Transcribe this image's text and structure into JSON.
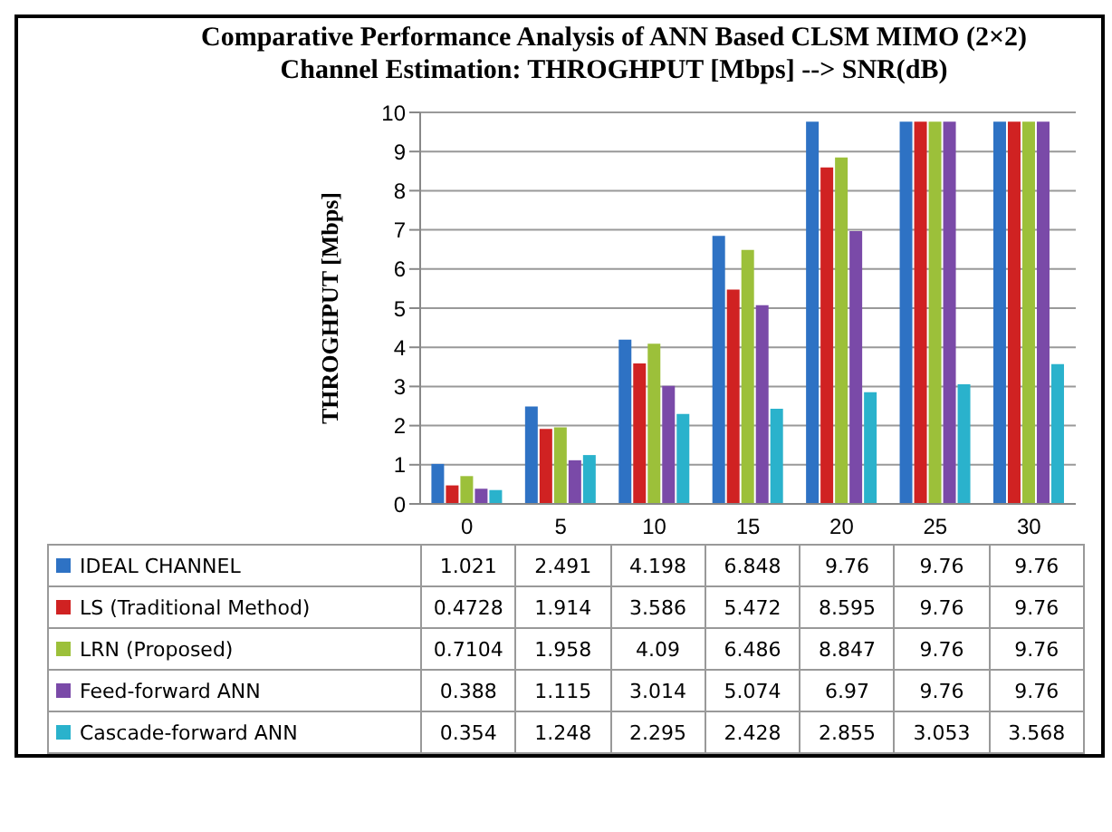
{
  "chart_data": {
    "type": "bar",
    "title": "Comparative Performance Analysis of ANN Based CLSM MIMO (2×2)",
    "subtitle": "Channel Estimation:  THROGHPUT [Mbps] --> SNR(dB)",
    "ylabel": "THROGHPUT  [Mbps]",
    "categories": [
      "0",
      "5",
      "10",
      "15",
      "20",
      "25",
      "30"
    ],
    "ylim": [
      0,
      10
    ],
    "yticks": [
      0,
      1,
      2,
      3,
      4,
      5,
      6,
      7,
      8,
      9,
      10
    ],
    "grid": "y",
    "legend": "bottom",
    "data_labels": true,
    "series": [
      {
        "name": "IDEAL CHANNEL",
        "color": "#2e72c4",
        "values": [
          1.021,
          2.491,
          4.198,
          6.848,
          9.76,
          9.76,
          9.76
        ]
      },
      {
        "name": "LS (Traditional Method)",
        "color": "#d02222",
        "values": [
          0.4728,
          1.914,
          3.586,
          5.472,
          8.595,
          9.76,
          9.76
        ]
      },
      {
        "name": "LRN (Proposed)",
        "color": "#9cc03a",
        "values": [
          0.7104,
          1.958,
          4.09,
          6.486,
          8.847,
          9.76,
          9.76
        ]
      },
      {
        "name": "Feed-forward ANN",
        "color": "#7a4aa8",
        "values": [
          0.388,
          1.115,
          3.014,
          5.074,
          6.97,
          9.76,
          9.76
        ]
      },
      {
        "name": "Cascade-forward ANN",
        "color": "#2ab2cc",
        "values": [
          0.354,
          1.248,
          2.295,
          2.428,
          2.855,
          3.053,
          3.568
        ]
      }
    ]
  }
}
